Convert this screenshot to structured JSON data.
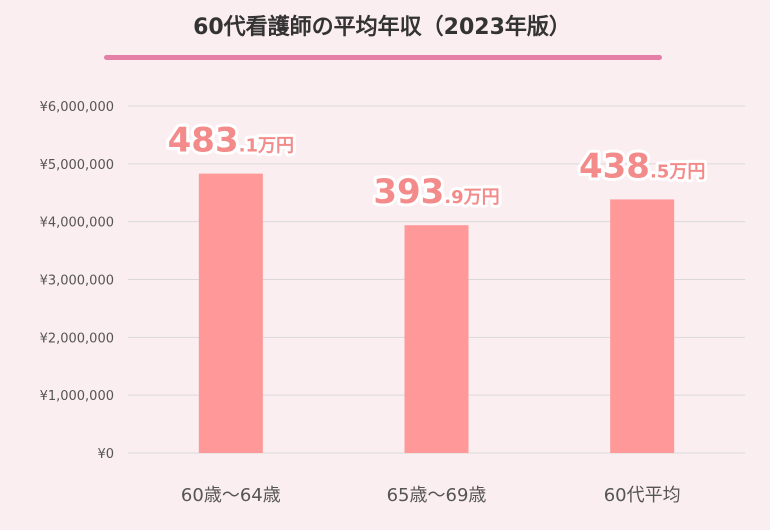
{
  "title": "60代看護師の平均年収（2023年版）",
  "colors": {
    "bar": "#ff9999",
    "label": "#f48b8b",
    "underline": "#e57fa8",
    "background": "#fbeef1"
  },
  "chart_data": {
    "type": "bar",
    "categories": [
      "60歳〜64歳",
      "65歳〜69歳",
      "60代平均"
    ],
    "values": [
      4831000,
      3939000,
      4385000
    ],
    "data_labels": [
      {
        "big": "483",
        "small": ".1万円"
      },
      {
        "big": "393",
        "small": ".9万円"
      },
      {
        "big": "438",
        "small": ".5万円"
      }
    ],
    "yticks": [
      "¥0",
      "¥1,000,000",
      "¥2,000,000",
      "¥3,000,000",
      "¥4,000,000",
      "¥5,000,000",
      "¥6,000,000"
    ],
    "ylim": [
      0,
      6000000
    ],
    "grid": true,
    "legend": "none"
  }
}
